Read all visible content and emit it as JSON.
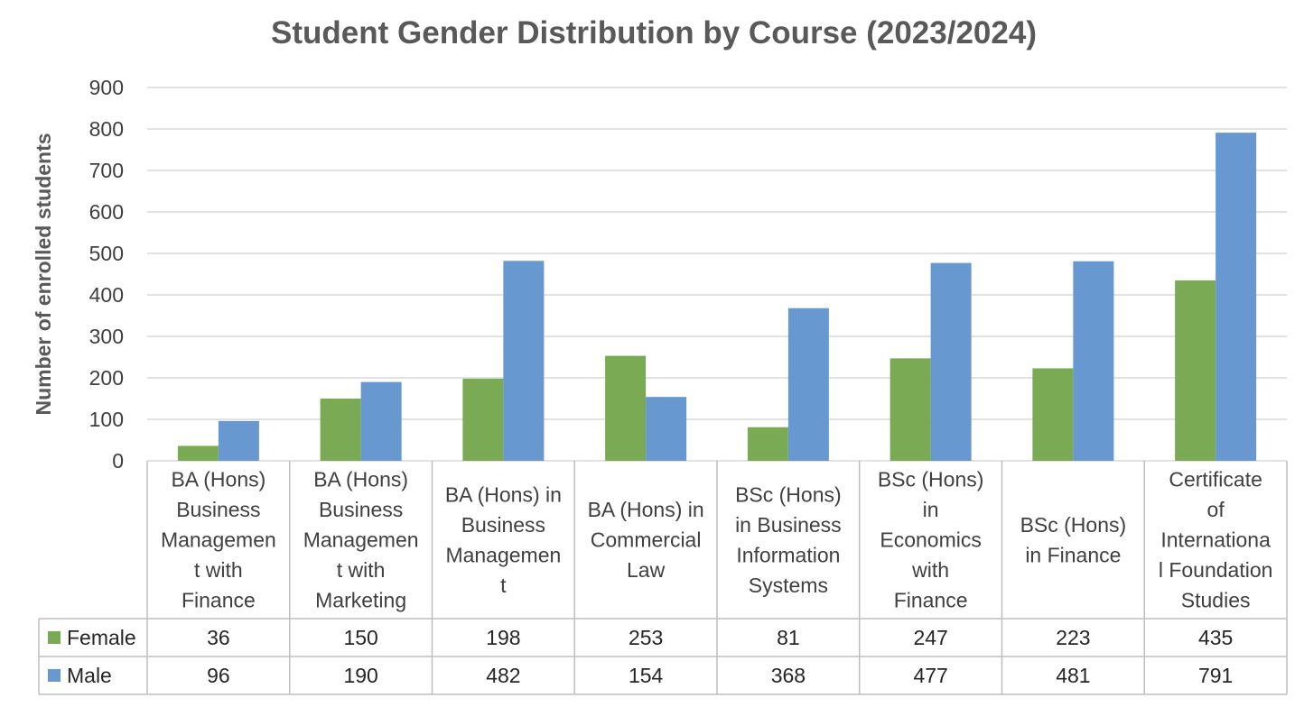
{
  "chart_data": {
    "type": "bar",
    "title": "Student Gender Distribution by Course (2023/2024)",
    "xlabel": "",
    "ylabel": "Number of enrolled students",
    "ylim": [
      0,
      900
    ],
    "yticks": [
      0,
      100,
      200,
      300,
      400,
      500,
      600,
      700,
      800,
      900
    ],
    "grid": true,
    "legend": "data table",
    "categories": [
      [
        "BA (Hons)",
        "Business",
        "Managemen",
        "t with",
        "Finance"
      ],
      [
        "BA (Hons)",
        "Business",
        "Managemen",
        "t with",
        "Marketing"
      ],
      [
        "BA (Hons) in",
        "Business",
        "Managemen",
        "t"
      ],
      [
        "BA (Hons) in",
        "Commercial",
        "Law"
      ],
      [
        "BSc (Hons)",
        "in Business",
        "Information",
        "Systems"
      ],
      [
        "BSc (Hons)",
        "in",
        "Economics",
        "with",
        "Finance"
      ],
      [
        "BSc (Hons)",
        "in Finance"
      ],
      [
        "Certificate",
        "of",
        "Internationa",
        "l Foundation",
        "Studies"
      ]
    ],
    "series": [
      {
        "name": "Female",
        "color": "#7BAA55",
        "values": [
          36,
          150,
          198,
          253,
          81,
          247,
          223,
          435
        ]
      },
      {
        "name": "Male",
        "color": "#6798CF",
        "values": [
          96,
          190,
          482,
          154,
          368,
          477,
          481,
          791
        ]
      }
    ]
  }
}
